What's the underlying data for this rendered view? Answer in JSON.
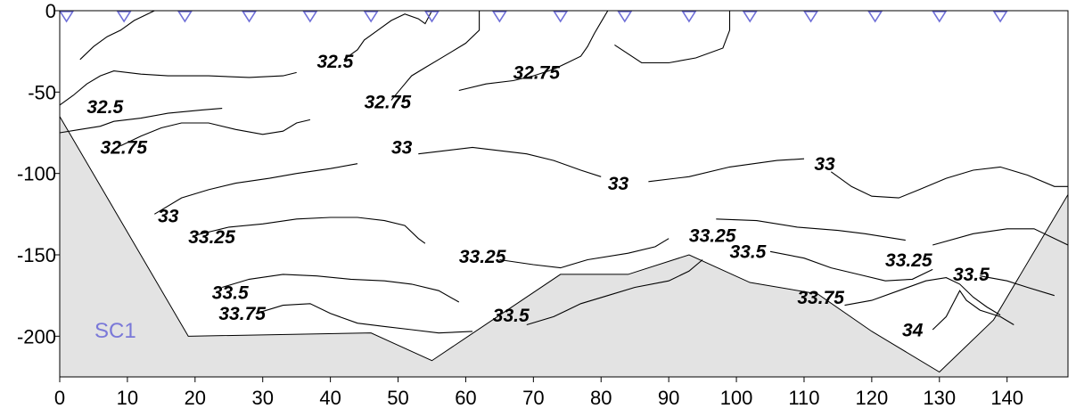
{
  "chart_data": {
    "type": "contour",
    "title": "",
    "xlabel": "",
    "ylabel": "",
    "xlim": [
      0,
      149
    ],
    "ylim": [
      -225,
      0
    ],
    "x_ticks": [
      "0",
      "10",
      "20",
      "30",
      "40",
      "50",
      "60",
      "70",
      "80",
      "90",
      "100",
      "110",
      "120",
      "130",
      "140"
    ],
    "y_ticks": [
      "0",
      "-50",
      "-100",
      "-150",
      "-200"
    ],
    "station_label": "SC1",
    "station_x": [
      1,
      9.5,
      18.5,
      28,
      37,
      46,
      55,
      65,
      74,
      83.5,
      93,
      102,
      111,
      120.5,
      130,
      139
    ],
    "seafloor": [
      [
        0,
        -65
      ],
      [
        19,
        -200
      ],
      [
        46,
        -198
      ],
      [
        55,
        -215
      ],
      [
        74,
        -162
      ],
      [
        84,
        -162
      ],
      [
        93,
        -150
      ],
      [
        102,
        -167
      ],
      [
        112,
        -174
      ],
      [
        120,
        -197
      ],
      [
        130,
        -222
      ],
      [
        138,
        -190
      ],
      [
        149,
        -113
      ]
    ],
    "contour_labels": [
      {
        "text": "32.5",
        "x": 38,
        "y": -35
      },
      {
        "text": "32.75",
        "x": 67,
        "y": -42
      },
      {
        "text": "32.5",
        "x": 4,
        "y": -63
      },
      {
        "text": "32.75",
        "x": 45,
        "y": -60
      },
      {
        "text": "32.75",
        "x": 6,
        "y": -88
      },
      {
        "text": "33",
        "x": 49,
        "y": -88
      },
      {
        "text": "33",
        "x": 81,
        "y": -110
      },
      {
        "text": "33",
        "x": 111.5,
        "y": -98
      },
      {
        "text": "33",
        "x": 14.5,
        "y": -130
      },
      {
        "text": "33.25",
        "x": 19,
        "y": -143
      },
      {
        "text": "33.25",
        "x": 59,
        "y": -155
      },
      {
        "text": "33.25",
        "x": 93,
        "y": -142
      },
      {
        "text": "33.5",
        "x": 99,
        "y": -152
      },
      {
        "text": "33.25",
        "x": 122,
        "y": -157
      },
      {
        "text": "33.5",
        "x": 132,
        "y": -166
      },
      {
        "text": "33.5",
        "x": 22.5,
        "y": -177
      },
      {
        "text": "33.75",
        "x": 23.5,
        "y": -190
      },
      {
        "text": "33.5",
        "x": 64,
        "y": -191
      },
      {
        "text": "33.75",
        "x": 109,
        "y": -180
      },
      {
        "text": "34",
        "x": 124.5,
        "y": -200
      }
    ],
    "contours": [
      {
        "level": 32.5,
        "points": [
          [
            0,
            -58
          ],
          [
            2,
            -52
          ],
          [
            4,
            -45
          ],
          [
            6,
            -40
          ],
          [
            8,
            -37
          ],
          [
            12,
            -39
          ],
          [
            16,
            -40
          ],
          [
            22,
            -40
          ],
          [
            28,
            -41
          ],
          [
            33,
            -40
          ],
          [
            35,
            -38
          ]
        ]
      },
      {
        "level": 32.5,
        "points": [
          [
            3,
            -30
          ],
          [
            5,
            -22
          ],
          [
            7,
            -16
          ],
          [
            9,
            -12
          ],
          [
            11,
            -6
          ],
          [
            14,
            0
          ]
        ]
      },
      {
        "level": 32.5,
        "points": [
          [
            42,
            -30
          ],
          [
            44,
            -24
          ],
          [
            45,
            -18
          ],
          [
            47,
            -12
          ],
          [
            49,
            -6
          ],
          [
            51,
            -2
          ],
          [
            53,
            -5
          ],
          [
            54,
            -8
          ],
          [
            55,
            0
          ]
        ]
      },
      {
        "level": 32.75,
        "points": [
          [
            0,
            -75
          ],
          [
            3,
            -73
          ],
          [
            6,
            -71
          ],
          [
            8,
            -68
          ],
          [
            12,
            -66
          ],
          [
            16,
            -63
          ],
          [
            21,
            -61
          ],
          [
            24,
            -60
          ]
        ]
      },
      {
        "level": 32.75,
        "points": [
          [
            9,
            -83
          ],
          [
            12,
            -77
          ],
          [
            15,
            -72
          ],
          [
            18,
            -69
          ],
          [
            22,
            -69
          ],
          [
            26,
            -73
          ],
          [
            30,
            -76
          ],
          [
            33,
            -74
          ],
          [
            35,
            -69
          ],
          [
            37,
            -67
          ]
        ]
      },
      {
        "level": 32.75,
        "points": [
          [
            49,
            -55
          ],
          [
            50,
            -50
          ],
          [
            51,
            -45
          ],
          [
            52,
            -40
          ],
          [
            54,
            -35
          ],
          [
            56,
            -30
          ],
          [
            58,
            -25
          ],
          [
            60,
            -20
          ],
          [
            62,
            -12
          ],
          [
            62,
            -4
          ],
          [
            62,
            0
          ]
        ]
      },
      {
        "level": 32.75,
        "points": [
          [
            59,
            -49
          ],
          [
            63,
            -45
          ],
          [
            67,
            -43
          ],
          [
            70,
            -40
          ],
          [
            73,
            -36
          ],
          [
            75,
            -32
          ],
          [
            77,
            -28
          ],
          [
            78,
            -22
          ],
          [
            79,
            -14
          ],
          [
            80,
            -7
          ],
          [
            81,
            0
          ]
        ]
      },
      {
        "level": 32.75,
        "points": [
          [
            82,
            -21
          ],
          [
            86,
            -32
          ],
          [
            90,
            -32
          ],
          [
            94,
            -29
          ],
          [
            98,
            -23
          ],
          [
            99,
            -12
          ],
          [
            99,
            0
          ]
        ]
      },
      {
        "level": 33,
        "points": [
          [
            14,
            -125
          ],
          [
            18,
            -115
          ],
          [
            22,
            -110
          ],
          [
            26,
            -106
          ],
          [
            31,
            -103
          ],
          [
            35,
            -100
          ],
          [
            40,
            -97
          ],
          [
            44,
            -94
          ]
        ]
      },
      {
        "level": 33,
        "points": [
          [
            53,
            -88
          ],
          [
            57,
            -86
          ],
          [
            61,
            -84
          ],
          [
            65,
            -86
          ],
          [
            69,
            -88
          ],
          [
            73,
            -92
          ],
          [
            77,
            -98
          ],
          [
            80,
            -102
          ]
        ]
      },
      {
        "level": 33,
        "points": [
          [
            87,
            -105
          ],
          [
            93,
            -102
          ],
          [
            99,
            -96
          ],
          [
            106,
            -92
          ],
          [
            110,
            -91
          ]
        ]
      },
      {
        "level": 33,
        "points": [
          [
            114,
            -99
          ],
          [
            117,
            -108
          ],
          [
            120,
            -114
          ],
          [
            124,
            -115
          ],
          [
            127,
            -110
          ],
          [
            131,
            -103
          ],
          [
            135,
            -98
          ],
          [
            139,
            -96
          ],
          [
            143,
            -101
          ],
          [
            147,
            -108
          ],
          [
            149,
            -108
          ]
        ]
      },
      {
        "level": 33.25,
        "points": [
          [
            20,
            -138
          ],
          [
            25,
            -133
          ],
          [
            30,
            -131
          ],
          [
            35,
            -128
          ],
          [
            40,
            -127
          ],
          [
            44,
            -127
          ],
          [
            48,
            -129
          ],
          [
            51,
            -132
          ],
          [
            53,
            -140
          ],
          [
            54,
            -143
          ]
        ]
      },
      {
        "level": 33.25,
        "points": [
          [
            65,
            -153
          ],
          [
            70,
            -156
          ],
          [
            74,
            -158
          ],
          [
            78,
            -153
          ],
          [
            84,
            -149
          ],
          [
            88,
            -145
          ],
          [
            90,
            -140
          ]
        ]
      },
      {
        "level": 33.25,
        "points": [
          [
            97,
            -128
          ],
          [
            103,
            -129
          ],
          [
            109,
            -133
          ],
          [
            115,
            -135
          ],
          [
            119,
            -137
          ],
          [
            122,
            -139
          ],
          [
            125,
            -141
          ]
        ]
      },
      {
        "level": 33.25,
        "points": [
          [
            129,
            -144
          ],
          [
            135,
            -137
          ],
          [
            140,
            -134
          ],
          [
            144,
            -134
          ],
          [
            149,
            -144
          ]
        ]
      },
      {
        "level": 33.5,
        "points": [
          [
            24,
            -170
          ],
          [
            28,
            -165
          ],
          [
            33,
            -162
          ],
          [
            38,
            -163
          ],
          [
            43,
            -165
          ],
          [
            48,
            -166
          ],
          [
            52,
            -168
          ],
          [
            56,
            -172
          ],
          [
            59,
            -179
          ]
        ]
      },
      {
        "level": 33.5,
        "points": [
          [
            69,
            -193
          ],
          [
            73,
            -188
          ],
          [
            77,
            -180
          ],
          [
            81,
            -175
          ],
          [
            85,
            -170
          ],
          [
            90,
            -166
          ],
          [
            93,
            -160
          ],
          [
            95,
            -153
          ]
        ]
      },
      {
        "level": 33.5,
        "points": [
          [
            105,
            -148
          ],
          [
            110,
            -152
          ],
          [
            114,
            -158
          ],
          [
            118,
            -162
          ],
          [
            122,
            -166
          ],
          [
            126,
            -165
          ],
          [
            129,
            -159
          ]
        ]
      },
      {
        "level": 33.5,
        "points": [
          [
            136,
            -163
          ],
          [
            140,
            -166
          ],
          [
            143,
            -170
          ],
          [
            147,
            -175
          ]
        ]
      },
      {
        "level": 33.75,
        "points": [
          [
            29,
            -186
          ],
          [
            33,
            -181
          ],
          [
            37,
            -180
          ],
          [
            40,
            -186
          ],
          [
            44,
            -192
          ],
          [
            48,
            -194
          ],
          [
            52,
            -196
          ],
          [
            56,
            -198
          ],
          [
            61,
            -197
          ]
        ]
      },
      {
        "level": 33.75,
        "points": [
          [
            116,
            -181
          ],
          [
            120,
            -178
          ],
          [
            124,
            -172
          ],
          [
            128,
            -166
          ],
          [
            131,
            -164
          ],
          [
            133,
            -168
          ],
          [
            135,
            -176
          ],
          [
            137,
            -182
          ],
          [
            139,
            -187
          ]
        ]
      },
      {
        "level": 34,
        "points": [
          [
            129,
            -196
          ],
          [
            131,
            -188
          ],
          [
            132,
            -180
          ],
          [
            133,
            -172
          ],
          [
            134,
            -178
          ],
          [
            136,
            -184
          ],
          [
            139,
            -188
          ],
          [
            141,
            -193
          ]
        ]
      }
    ]
  }
}
